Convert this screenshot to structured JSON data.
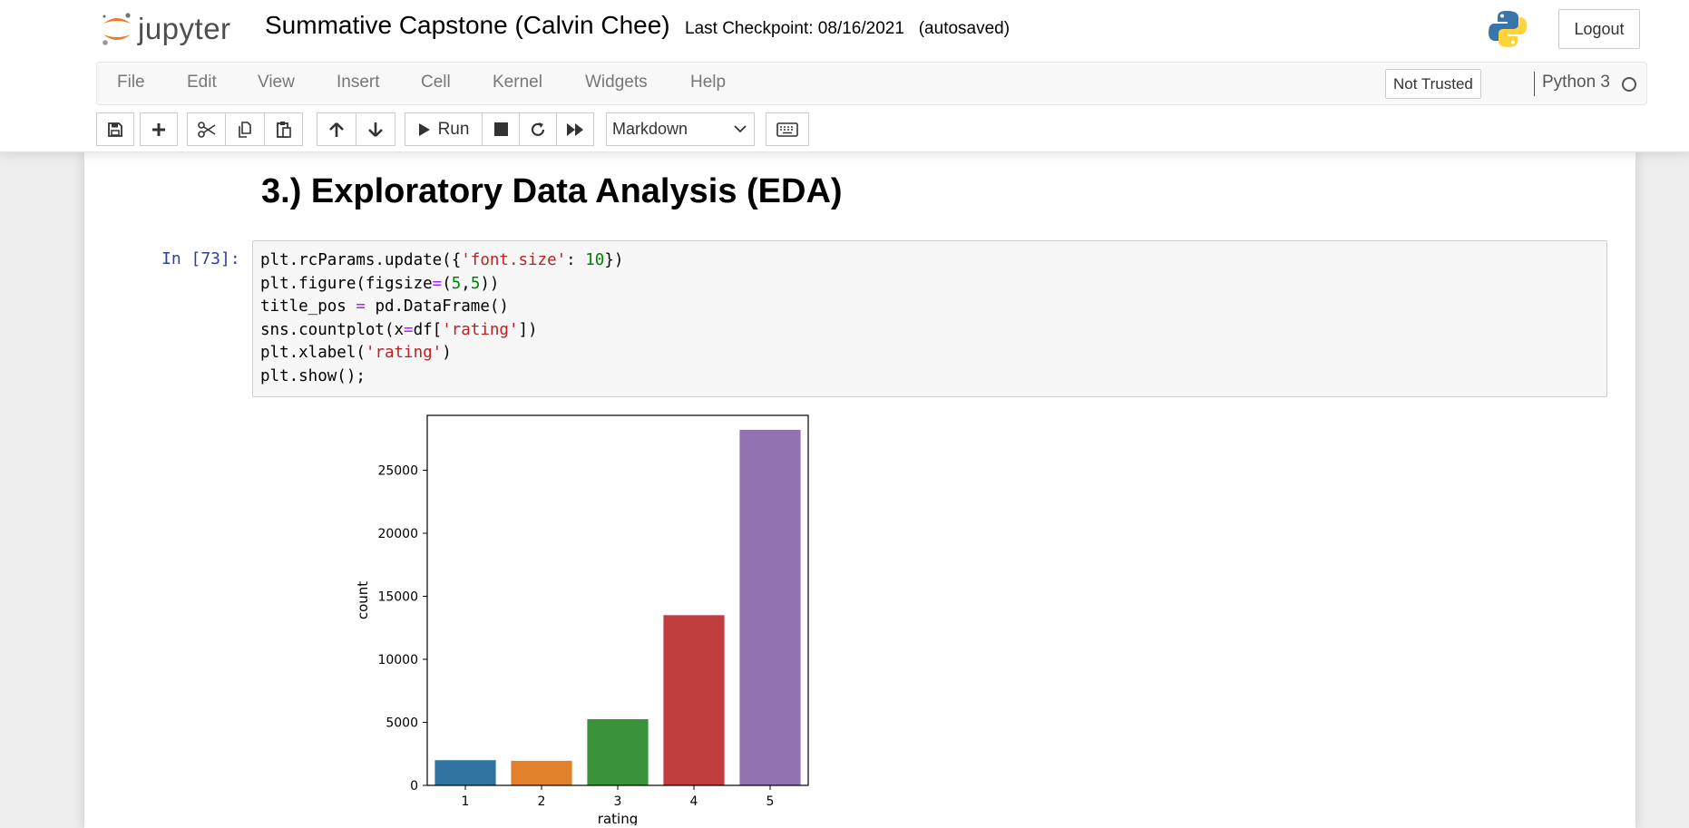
{
  "header": {
    "logo_text": "jupyter",
    "notebook_name": "Summative Capstone (Calvin Chee)",
    "checkpoint": "Last Checkpoint: 08/16/2021   (autosaved)",
    "logout_label": "Logout"
  },
  "menubar": {
    "items": [
      "File",
      "Edit",
      "View",
      "Insert",
      "Cell",
      "Kernel",
      "Widgets",
      "Help"
    ],
    "trust_label": "Not Trusted",
    "kernel_name": "Python 3"
  },
  "toolbar": {
    "run_label": "Run",
    "cell_type": "Markdown"
  },
  "notebook": {
    "heading": "3.) Exploratory Data Analysis (EDA)",
    "prompt": "In [73]:",
    "code_lines": [
      "plt.rcParams.update({'font.size': 10})",
      "plt.figure(figsize=(5,5))",
      "title_pos = pd.DataFrame()",
      "sns.countplot(x=df['rating'])",
      "plt.xlabel('rating')",
      "plt.show();"
    ]
  },
  "chart_data": {
    "type": "bar",
    "categories": [
      "1",
      "2",
      "3",
      "4",
      "5"
    ],
    "values": [
      2000,
      1950,
      5250,
      13500,
      28200
    ],
    "xlabel": "rating",
    "ylabel": "count",
    "ylim": [
      0,
      28200
    ],
    "yticks": [
      0,
      5000,
      10000,
      15000,
      20000,
      25000
    ],
    "colors": [
      "#3274a1",
      "#e1812c",
      "#3a923a",
      "#c03d3e",
      "#9372b2"
    ],
    "grid": false
  }
}
